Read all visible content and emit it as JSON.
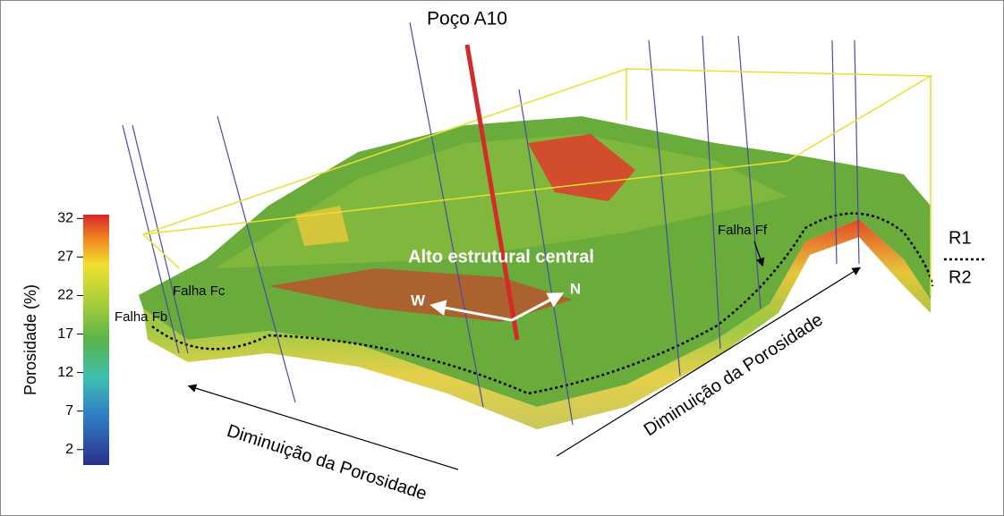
{
  "title": "Poço A10",
  "annotations": {
    "center": "Alto estrutural central",
    "west": "W",
    "north": "N",
    "fault_fc": "Falha Fc",
    "fault_fb": "Falha Fb",
    "fault_ff": "Falha Ff",
    "r1": "R1",
    "r2": "R2",
    "trend_left": "Diminuição da Porosidade",
    "trend_right": "Diminuição da Porosidade"
  },
  "colorbar": {
    "label": "Porosidade (%)",
    "lim": [
      0,
      32.5
    ],
    "ticks": [
      2,
      7,
      12,
      17,
      22,
      27,
      32
    ]
  }
}
